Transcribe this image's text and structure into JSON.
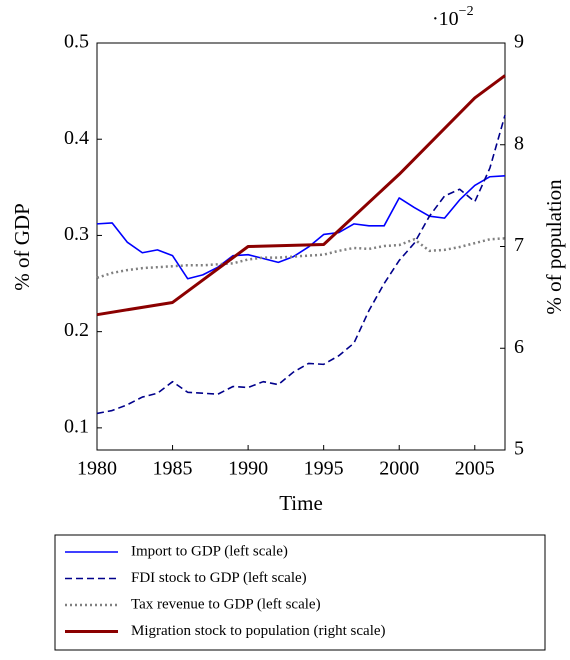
{
  "chart_data": {
    "type": "line",
    "x_label": "Time",
    "y_label": "% of GDP",
    "y2_label": "% of population",
    "y2_multiplier": {
      "base": "·10",
      "exponent": "−2"
    },
    "x": [
      1980,
      1981,
      1982,
      1983,
      1984,
      1985,
      1986,
      1987,
      1988,
      1989,
      1990,
      1991,
      1992,
      1993,
      1994,
      1995,
      1996,
      1997,
      1998,
      1999,
      2000,
      2001,
      2002,
      2003,
      2004,
      2005,
      2006,
      2007
    ],
    "xlim": [
      1980,
      2007
    ],
    "xticks": [
      1980,
      1985,
      1990,
      1995,
      2000,
      2005
    ],
    "ylim": [
      0.077,
      0.5
    ],
    "yticks": [
      0.1,
      0.2,
      0.3,
      0.4,
      0.5
    ],
    "y2lim": [
      5,
      9
    ],
    "y2ticks": [
      5,
      6,
      7,
      8,
      9
    ],
    "series": [
      {
        "name": "Import to GDP (left scale)",
        "color": "#0000ff",
        "dash": "solid",
        "values": [
          0.312,
          0.313,
          0.293,
          0.282,
          0.285,
          0.279,
          0.255,
          0.259,
          0.267,
          0.279,
          0.28,
          0.276,
          0.272,
          0.278,
          0.288,
          0.301,
          0.303,
          0.312,
          0.31,
          0.31,
          0.339,
          0.329,
          0.32,
          0.318,
          0.337,
          0.352,
          0.361,
          0.362
        ]
      },
      {
        "name": "FDI stock to GDP (left scale)",
        "color": "#00008b",
        "dash": "dashed",
        "values": [
          0.115,
          0.118,
          0.124,
          0.132,
          0.136,
          0.148,
          0.137,
          0.136,
          0.135,
          0.143,
          0.142,
          0.148,
          0.145,
          0.158,
          0.167,
          0.166,
          0.175,
          0.188,
          0.222,
          0.25,
          0.274,
          0.292,
          0.32,
          0.341,
          0.348,
          0.335,
          0.37,
          0.425
        ]
      },
      {
        "name": "Tax revenue to GDP (left scale)",
        "color": "#808080",
        "dash": "dotted",
        "values": [
          0.256,
          0.261,
          0.264,
          0.266,
          0.267,
          0.268,
          0.269,
          0.269,
          0.27,
          0.271,
          0.275,
          0.277,
          0.277,
          0.278,
          0.279,
          0.28,
          0.284,
          0.287,
          0.286,
          0.289,
          0.29,
          0.296,
          0.284,
          0.285,
          0.288,
          0.292,
          0.296,
          0.297
        ]
      },
      {
        "name": "Migration stock to population (right scale)",
        "color": "#8b0000",
        "dash": "solid",
        "axis": "y2",
        "x": [
          1980,
          1985,
          1990,
          1995,
          2000,
          2005,
          2007
        ],
        "values": [
          6.33,
          6.45,
          7.0,
          7.02,
          7.71,
          8.46,
          8.68
        ]
      }
    ]
  }
}
